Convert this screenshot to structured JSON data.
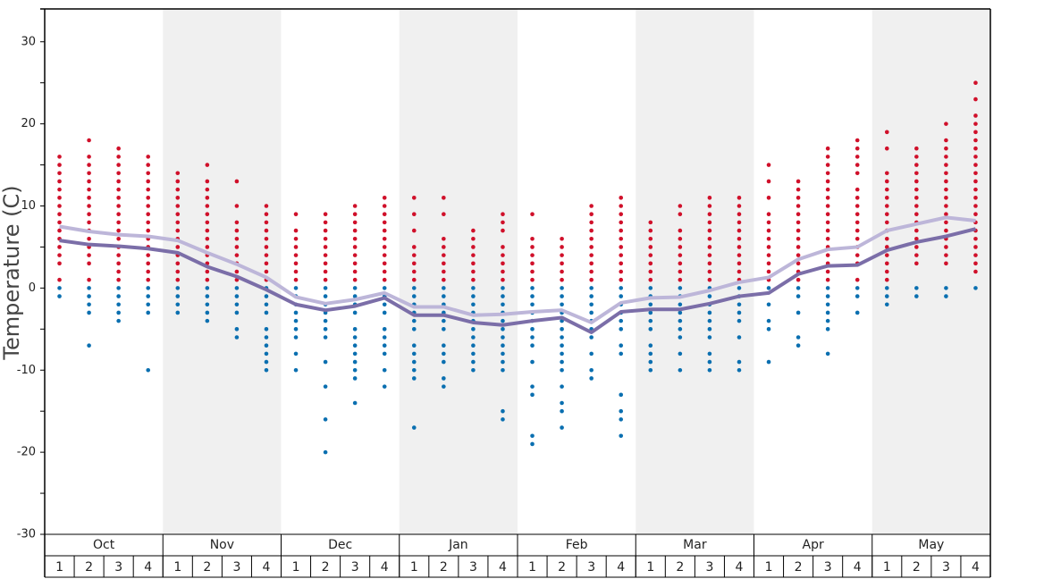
{
  "chart_data": {
    "type": "scatter",
    "y_label": "Temperature (C)",
    "ylim": [
      -30,
      34
    ],
    "yticks": [
      -30,
      -20,
      -10,
      0,
      10,
      20,
      30
    ],
    "minor_yticks": [
      -25,
      -15,
      -5,
      5,
      15,
      25
    ],
    "months": [
      "Oct",
      "Nov",
      "Dec",
      "Jan",
      "Feb",
      "Mar",
      "Apr",
      "May"
    ],
    "weeks": [
      1,
      2,
      3,
      4
    ],
    "lines": [
      {
        "color": "#bdb6d9",
        "values": [
          7.5,
          6.9,
          6.5,
          6.3,
          5.8,
          4.3,
          2.9,
          1.3,
          -1.1,
          -1.9,
          -1.4,
          -0.6,
          -2.3,
          -2.3,
          -3.3,
          -3.2,
          -2.9,
          -2.7,
          -4.2,
          -1.8,
          -1.2,
          -1.1,
          -0.3,
          0.7,
          1.3,
          3.5,
          4.7,
          5.0,
          7.0,
          7.8,
          8.6,
          8.2
        ]
      },
      {
        "color": "#7b6ea8",
        "values": [
          5.8,
          5.3,
          5.1,
          4.8,
          4.3,
          2.6,
          1.4,
          -0.2,
          -2.0,
          -2.7,
          -2.2,
          -1.2,
          -3.3,
          -3.3,
          -4.2,
          -4.5,
          -4.0,
          -3.6,
          -5.4,
          -2.9,
          -2.6,
          -2.6,
          -1.9,
          -1.0,
          -0.6,
          1.7,
          2.7,
          2.8,
          4.6,
          5.6,
          6.3,
          7.2
        ]
      }
    ],
    "dots": [
      {
        "color": "#d0102a",
        "values": [
          [
            16,
            15,
            14,
            13,
            12,
            11,
            10,
            9,
            8,
            7,
            6,
            5,
            4,
            3,
            1
          ],
          [
            18,
            16,
            15,
            14,
            13,
            12,
            11,
            10,
            9,
            8,
            7,
            6,
            5,
            4,
            3,
            1
          ],
          [
            17,
            16,
            15,
            14,
            13,
            12,
            11,
            10,
            9,
            8,
            7,
            6,
            5,
            4,
            3,
            2,
            1
          ],
          [
            16,
            15,
            14,
            13,
            12,
            11,
            10,
            9,
            8,
            7,
            6,
            5,
            4,
            3,
            2,
            1
          ],
          [
            14,
            13,
            12,
            11,
            10,
            9,
            8,
            7,
            6,
            5,
            4,
            3,
            2,
            1
          ],
          [
            15,
            13,
            12,
            11,
            10,
            9,
            8,
            7,
            6,
            5,
            4,
            3,
            2,
            1
          ],
          [
            13,
            10,
            8,
            7,
            6,
            5,
            4,
            3,
            2,
            1
          ],
          [
            10,
            9,
            8,
            7,
            6,
            5,
            4,
            3,
            2,
            1
          ],
          [
            9,
            7,
            6,
            5,
            4,
            3,
            2,
            1
          ],
          [
            9,
            8,
            7,
            6,
            5,
            4,
            3,
            2,
            1
          ],
          [
            10,
            9,
            8,
            7,
            6,
            5,
            4,
            3,
            2,
            1
          ],
          [
            11,
            10,
            9,
            8,
            7,
            6,
            5,
            4,
            3,
            2,
            1
          ],
          [
            11,
            9,
            7,
            5,
            4,
            3,
            2,
            1
          ],
          [
            11,
            9,
            6,
            5,
            4,
            3,
            2,
            1
          ],
          [
            7,
            6,
            5,
            4,
            3,
            2,
            1
          ],
          [
            9,
            8,
            7,
            5,
            4,
            3,
            2,
            1
          ],
          [
            9,
            6,
            5,
            4,
            3,
            2,
            1
          ],
          [
            6,
            5,
            4,
            3,
            2,
            1
          ],
          [
            10,
            9,
            8,
            7,
            6,
            5,
            4,
            3,
            2,
            1
          ],
          [
            11,
            10,
            9,
            8,
            7,
            6,
            5,
            4,
            3,
            2,
            1
          ],
          [
            8,
            7,
            6,
            5,
            4,
            3,
            2,
            1
          ],
          [
            10,
            9,
            7,
            6,
            5,
            4,
            3,
            2,
            1
          ],
          [
            11,
            10,
            9,
            8,
            7,
            6,
            5,
            4,
            3,
            2,
            1
          ],
          [
            11,
            10,
            9,
            8,
            7,
            6,
            5,
            4,
            3,
            2,
            1
          ],
          [
            15,
            13,
            11,
            9,
            8,
            7,
            6,
            5,
            4,
            3,
            2,
            1
          ],
          [
            13,
            12,
            11,
            10,
            9,
            8,
            7,
            6,
            5,
            4,
            3,
            2,
            1
          ],
          [
            17,
            16,
            15,
            14,
            13,
            12,
            11,
            10,
            9,
            8,
            7,
            6,
            5,
            4,
            3,
            2,
            1
          ],
          [
            18,
            17,
            16,
            15,
            14,
            12,
            11,
            10,
            9,
            8,
            7,
            6,
            5,
            4,
            3,
            1
          ],
          [
            19,
            17,
            14,
            13,
            12,
            11,
            10,
            9,
            8,
            7,
            6,
            5,
            4,
            3,
            2,
            1
          ],
          [
            17,
            16,
            15,
            14,
            13,
            12,
            11,
            10,
            9,
            8,
            7,
            6,
            5,
            4,
            3
          ],
          [
            20,
            18,
            17,
            16,
            15,
            14,
            13,
            12,
            11,
            10,
            9,
            8,
            7,
            6,
            5,
            4,
            3
          ],
          [
            25,
            23,
            21,
            20,
            19,
            18,
            17,
            16,
            15,
            14,
            13,
            12,
            11,
            10,
            9,
            8,
            7,
            6,
            5,
            4,
            3,
            2
          ]
        ]
      },
      {
        "color": "#0a6fb0",
        "values": [
          [
            0,
            -1
          ],
          [
            0,
            -1,
            -2,
            -3,
            -7
          ],
          [
            0,
            -1,
            -2,
            -3,
            -4
          ],
          [
            0,
            -1,
            -2,
            -3,
            -10
          ],
          [
            0,
            -1,
            -2,
            -3
          ],
          [
            0,
            -1,
            -2,
            -3,
            -4
          ],
          [
            0,
            -1,
            -2,
            -3,
            -5,
            -6
          ],
          [
            0,
            -1,
            -2,
            -3,
            -5,
            -6,
            -7,
            -8,
            -9,
            -10
          ],
          [
            0,
            -1,
            -2,
            -3,
            -4,
            -5,
            -6,
            -8,
            -10
          ],
          [
            0,
            -1,
            -2,
            -3,
            -4,
            -5,
            -6,
            -9,
            -12,
            -16,
            -20
          ],
          [
            0,
            -1,
            -2,
            -3,
            -5,
            -6,
            -7,
            -8,
            -9,
            -10,
            -11,
            -14
          ],
          [
            0,
            -1,
            -2,
            -3,
            -5,
            -6,
            -7,
            -8,
            -10,
            -12
          ],
          [
            0,
            -1,
            -2,
            -3,
            -4,
            -5,
            -7,
            -8,
            -9,
            -10,
            -11,
            -17
          ],
          [
            0,
            -1,
            -2,
            -3,
            -4,
            -5,
            -7,
            -8,
            -9,
            -11,
            -12
          ],
          [
            0,
            -1,
            -2,
            -3,
            -4,
            -5,
            -6,
            -7,
            -8,
            -9,
            -10
          ],
          [
            0,
            -1,
            -2,
            -3,
            -4,
            -5,
            -6,
            -7,
            -8,
            -9,
            -10,
            -15,
            -16
          ],
          [
            0,
            -1,
            -2,
            -3,
            -4,
            -5,
            -6,
            -7,
            -9,
            -12,
            -13,
            -18,
            -19
          ],
          [
            0,
            -1,
            -2,
            -3,
            -4,
            -5,
            -6,
            -7,
            -8,
            -9,
            -10,
            -12,
            -14,
            -15,
            -17
          ],
          [
            0,
            -1,
            -2,
            -3,
            -4,
            -5,
            -6,
            -8,
            -10,
            -11
          ],
          [
            0,
            -1,
            -2,
            -3,
            -4,
            -5,
            -7,
            -8,
            -13,
            -15,
            -16,
            -18
          ],
          [
            0,
            -1,
            -2,
            -3,
            -4,
            -5,
            -7,
            -8,
            -9,
            -10
          ],
          [
            0,
            -1,
            -2,
            -3,
            -4,
            -5,
            -6,
            -8,
            -10
          ],
          [
            0,
            -1,
            -2,
            -3,
            -4,
            -5,
            -6,
            -8,
            -9,
            -10
          ],
          [
            0,
            -1,
            -2,
            -3,
            -4,
            -6,
            -9,
            -10
          ],
          [
            0,
            -2,
            -4,
            -5,
            -9
          ],
          [
            0,
            -1,
            -3,
            -6,
            -7
          ],
          [
            0,
            -1,
            -2,
            -3,
            -4,
            -5,
            -8
          ],
          [
            0,
            -1,
            -3
          ],
          [
            0,
            -1,
            -2
          ],
          [
            0,
            -1
          ],
          [
            0,
            -1
          ],
          [
            0
          ]
        ]
      }
    ]
  }
}
